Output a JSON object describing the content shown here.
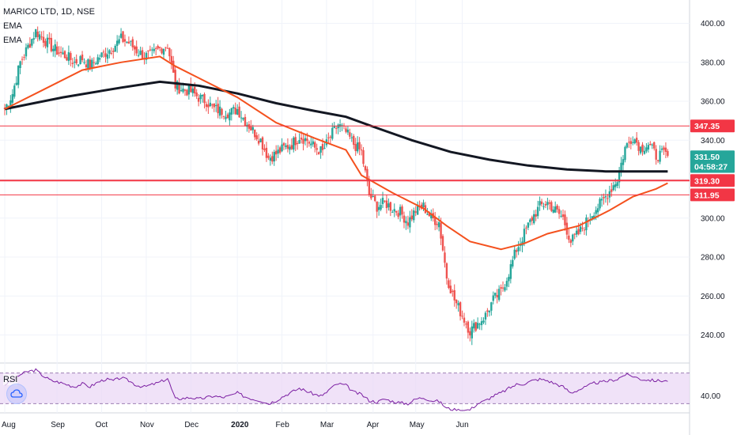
{
  "header": {
    "title": "MARICO LTD, 1D, NSE",
    "ind1": "EMA",
    "ind2": "EMA"
  },
  "rsi_label": "RSI",
  "colors": {
    "up": "#26a69a",
    "down": "#ef5350",
    "ema_fast": "#f4511e",
    "ema_slow": "#131722",
    "level": "#f23645",
    "rsi_line": "#7b1fa2",
    "rsi_fill": "#e9d6f5",
    "price_tag": "#26a69a",
    "timer_tag": "#26a69a",
    "level_tag": "#f23645"
  },
  "chart_data": {
    "type": "candlestick",
    "title": "MARICO LTD, 1D, NSE",
    "ylim": [
      226,
      412
    ],
    "y_ticks": [
      240,
      260,
      280,
      300,
      320,
      340,
      360,
      380,
      400
    ],
    "y_tick_labels": [
      "240.00",
      "260.00",
      "280.00",
      "300.00",
      "320.00",
      "340.00",
      "360.00",
      "380.00",
      "400.00"
    ],
    "x_labels": [
      "Aug",
      "Sep",
      "Oct",
      "Nov",
      "Dec",
      "2020",
      "Feb",
      "Mar",
      "Apr",
      "May",
      "Jun"
    ],
    "price_path": [
      [
        0,
        356
      ],
      [
        4,
        364
      ],
      [
        8,
        380
      ],
      [
        12,
        388
      ],
      [
        16,
        396
      ],
      [
        20,
        392
      ],
      [
        24,
        388
      ],
      [
        28,
        385
      ],
      [
        32,
        383
      ],
      [
        36,
        380
      ],
      [
        40,
        382
      ],
      [
        44,
        378
      ],
      [
        48,
        382
      ],
      [
        52,
        385
      ],
      [
        56,
        388
      ],
      [
        60,
        392
      ],
      [
        64,
        390
      ],
      [
        68,
        386
      ],
      [
        72,
        383
      ],
      [
        76,
        384
      ],
      [
        80,
        387
      ],
      [
        84,
        389
      ],
      [
        88,
        368
      ],
      [
        92,
        366
      ],
      [
        96,
        365
      ],
      [
        100,
        362
      ],
      [
        104,
        360
      ],
      [
        108,
        356
      ],
      [
        112,
        355
      ],
      [
        116,
        354
      ],
      [
        120,
        356
      ],
      [
        124,
        350
      ],
      [
        128,
        345
      ],
      [
        132,
        340
      ],
      [
        136,
        331
      ],
      [
        140,
        333
      ],
      [
        144,
        336
      ],
      [
        148,
        338
      ],
      [
        152,
        342
      ],
      [
        156,
        340
      ],
      [
        160,
        336
      ],
      [
        164,
        334
      ],
      [
        168,
        342
      ],
      [
        172,
        348
      ],
      [
        176,
        344
      ],
      [
        180,
        338
      ],
      [
        184,
        334
      ],
      [
        188,
        312
      ],
      [
        192,
        306
      ],
      [
        196,
        308
      ],
      [
        200,
        305
      ],
      [
        204,
        303
      ],
      [
        208,
        298
      ],
      [
        212,
        304
      ],
      [
        216,
        306
      ],
      [
        220,
        300
      ],
      [
        224,
        298
      ],
      [
        228,
        270
      ],
      [
        232,
        258
      ],
      [
        236,
        250
      ],
      [
        240,
        242
      ],
      [
        244,
        246
      ],
      [
        248,
        250
      ],
      [
        252,
        258
      ],
      [
        256,
        262
      ],
      [
        260,
        272
      ],
      [
        264,
        284
      ],
      [
        268,
        292
      ],
      [
        272,
        300
      ],
      [
        276,
        306
      ],
      [
        280,
        308
      ],
      [
        284,
        304
      ],
      [
        288,
        300
      ],
      [
        292,
        288
      ],
      [
        296,
        292
      ],
      [
        300,
        298
      ],
      [
        304,
        304
      ],
      [
        308,
        308
      ],
      [
        312,
        314
      ],
      [
        316,
        320
      ],
      [
        320,
        336
      ],
      [
        324,
        342
      ],
      [
        328,
        336
      ],
      [
        332,
        338
      ],
      [
        336,
        332
      ],
      [
        340,
        333
      ],
      [
        342,
        332
      ]
    ],
    "ema_fast": [
      [
        0,
        356
      ],
      [
        20,
        366
      ],
      [
        40,
        376
      ],
      [
        60,
        380
      ],
      [
        80,
        383
      ],
      [
        88,
        378
      ],
      [
        100,
        372
      ],
      [
        120,
        362
      ],
      [
        140,
        349
      ],
      [
        160,
        341
      ],
      [
        176,
        335
      ],
      [
        184,
        322
      ],
      [
        200,
        313
      ],
      [
        216,
        305
      ],
      [
        228,
        296
      ],
      [
        240,
        288
      ],
      [
        256,
        284
      ],
      [
        268,
        287
      ],
      [
        280,
        292
      ],
      [
        296,
        296
      ],
      [
        312,
        304
      ],
      [
        324,
        311
      ],
      [
        336,
        315
      ],
      [
        342,
        318
      ]
    ],
    "ema_slow": [
      [
        0,
        356
      ],
      [
        30,
        362
      ],
      [
        60,
        367
      ],
      [
        80,
        370
      ],
      [
        100,
        368
      ],
      [
        120,
        364
      ],
      [
        140,
        359
      ],
      [
        160,
        355
      ],
      [
        176,
        352
      ],
      [
        190,
        347
      ],
      [
        210,
        340
      ],
      [
        230,
        334
      ],
      [
        250,
        330
      ],
      [
        270,
        327
      ],
      [
        290,
        325
      ],
      [
        310,
        324
      ],
      [
        325,
        324
      ],
      [
        342,
        324
      ]
    ],
    "rsi": {
      "ylim": [
        20,
        80
      ],
      "upper": 70,
      "lower": 30,
      "y_tick": 40,
      "y_tick_label": "40.00",
      "series": [
        [
          0,
          55
        ],
        [
          4,
          60
        ],
        [
          8,
          68
        ],
        [
          12,
          72
        ],
        [
          16,
          74
        ],
        [
          20,
          66
        ],
        [
          24,
          60
        ],
        [
          28,
          58
        ],
        [
          32,
          55
        ],
        [
          36,
          52
        ],
        [
          40,
          56
        ],
        [
          44,
          52
        ],
        [
          48,
          58
        ],
        [
          52,
          62
        ],
        [
          56,
          60
        ],
        [
          60,
          64
        ],
        [
          64,
          60
        ],
        [
          68,
          54
        ],
        [
          72,
          52
        ],
        [
          76,
          55
        ],
        [
          80,
          58
        ],
        [
          84,
          63
        ],
        [
          88,
          36
        ],
        [
          92,
          37
        ],
        [
          96,
          38
        ],
        [
          100,
          36
        ],
        [
          104,
          38
        ],
        [
          108,
          40
        ],
        [
          112,
          38
        ],
        [
          116,
          40
        ],
        [
          120,
          44
        ],
        [
          124,
          39
        ],
        [
          128,
          36
        ],
        [
          132,
          34
        ],
        [
          136,
          30
        ],
        [
          140,
          34
        ],
        [
          144,
          40
        ],
        [
          148,
          45
        ],
        [
          152,
          50
        ],
        [
          156,
          46
        ],
        [
          160,
          42
        ],
        [
          164,
          40
        ],
        [
          168,
          50
        ],
        [
          172,
          56
        ],
        [
          176,
          54
        ],
        [
          180,
          45
        ],
        [
          184,
          42
        ],
        [
          188,
          34
        ],
        [
          192,
          32
        ],
        [
          196,
          36
        ],
        [
          200,
          33
        ],
        [
          204,
          31
        ],
        [
          208,
          30
        ],
        [
          212,
          36
        ],
        [
          216,
          38
        ],
        [
          220,
          34
        ],
        [
          224,
          33
        ],
        [
          228,
          24
        ],
        [
          232,
          22
        ],
        [
          236,
          21
        ],
        [
          240,
          22
        ],
        [
          244,
          30
        ],
        [
          248,
          34
        ],
        [
          252,
          40
        ],
        [
          256,
          44
        ],
        [
          260,
          50
        ],
        [
          264,
          55
        ],
        [
          268,
          56
        ],
        [
          272,
          60
        ],
        [
          276,
          62
        ],
        [
          280,
          60
        ],
        [
          284,
          56
        ],
        [
          288,
          52
        ],
        [
          292,
          44
        ],
        [
          296,
          48
        ],
        [
          300,
          52
        ],
        [
          304,
          57
        ],
        [
          308,
          58
        ],
        [
          312,
          60
        ],
        [
          316,
          62
        ],
        [
          320,
          68
        ],
        [
          324,
          66
        ],
        [
          328,
          62
        ],
        [
          332,
          61
        ],
        [
          336,
          60
        ],
        [
          340,
          60
        ],
        [
          342,
          59
        ]
      ]
    },
    "levels": [
      {
        "value": 347.35,
        "label": "347.35",
        "thickness": 1
      },
      {
        "value": 319.3,
        "label": "319.30",
        "thickness": 2
      },
      {
        "value": 311.95,
        "label": "311.95",
        "thickness": 1
      }
    ],
    "last_price": {
      "value": 331.5,
      "label": "331.50"
    },
    "countdown": {
      "value": 326.5,
      "label": "04:58:27"
    }
  }
}
